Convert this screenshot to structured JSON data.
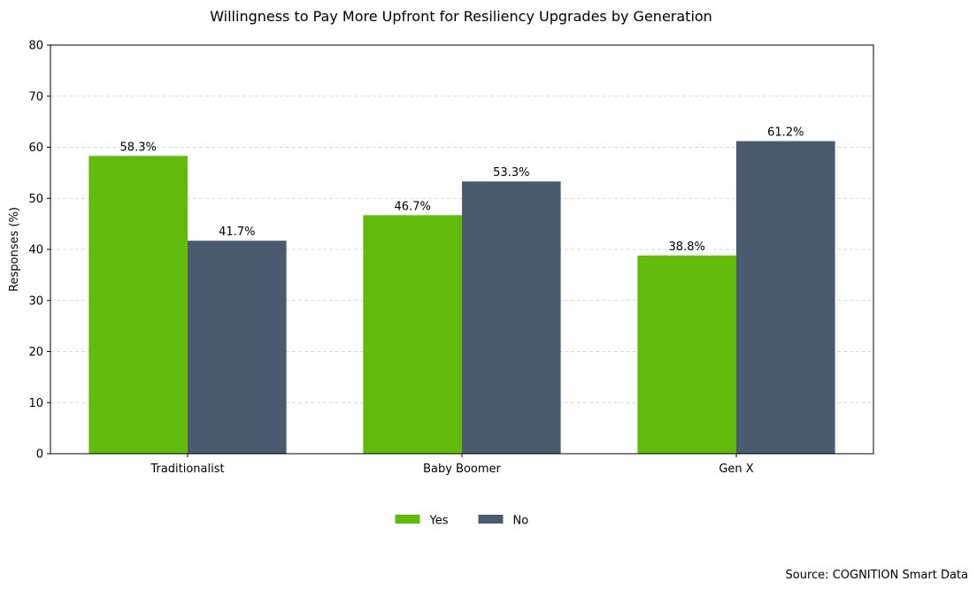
{
  "chart_data": {
    "type": "bar",
    "title": "Willingness to Pay More Upfront for Resiliency Upgrades by Generation",
    "ylabel": "Responses (%)",
    "xlabel": "",
    "categories": [
      "Traditionalist",
      "Baby Boomer",
      "Gen X"
    ],
    "series": [
      {
        "name": "Yes",
        "color": "#62bb0b",
        "values": [
          58.3,
          46.7,
          38.8
        ],
        "labels": [
          "58.3%",
          "46.7%",
          "38.8%"
        ]
      },
      {
        "name": "No",
        "color": "#4a5b70",
        "values": [
          41.7,
          53.3,
          61.2
        ],
        "labels": [
          "41.7%",
          "53.3%",
          "61.2%"
        ]
      }
    ],
    "ylim": [
      0,
      80
    ],
    "yticks": [
      0,
      10,
      20,
      30,
      40,
      50,
      60,
      70,
      80
    ],
    "grid": true,
    "legend_position": "bottom-center"
  },
  "source": "Source: COGNITION Smart Data"
}
